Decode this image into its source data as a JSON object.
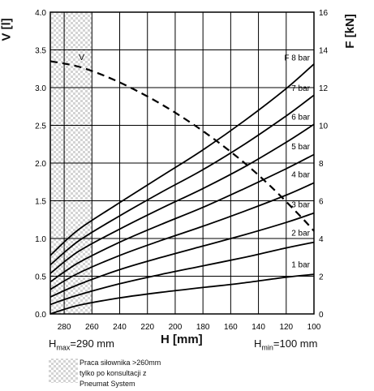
{
  "chart_data": {
    "type": "line",
    "xlabel": "H [mm]",
    "ylabel_left": "V [l]",
    "ylabel_right": "F [kN]",
    "x_reversed": true,
    "xlim": [
      290,
      100
    ],
    "ylim_left": [
      0,
      4.0
    ],
    "ylim_right": [
      0,
      16
    ],
    "x_ticks": [
      "280",
      "260",
      "240",
      "220",
      "200",
      "180",
      "160",
      "140",
      "120",
      "100"
    ],
    "y_ticks_left": [
      "0.0",
      "0.5",
      "1.0",
      "1.5",
      "2.0",
      "2.5",
      "3.0",
      "3.5",
      "4.0"
    ],
    "y_ticks_right": [
      "0",
      "2",
      "4",
      "6",
      "8",
      "10",
      "12",
      "14",
      "16"
    ],
    "grid": true,
    "hatched_region": [
      290,
      260
    ],
    "x_min_label": "H",
    "x_min_sub": "min",
    "x_min_value": "=100 mm",
    "x_max_label": "H",
    "x_max_sub": "max",
    "x_max_value": "=290 mm",
    "force_curves_axis": "right",
    "series": [
      {
        "name": "1 bar",
        "x": [
          290,
          270,
          240,
          210,
          180,
          150,
          120,
          100
        ],
        "y": [
          0.0,
          0.45,
          0.85,
          1.15,
          1.4,
          1.65,
          1.95,
          2.1
        ]
      },
      {
        "name": "2 bar",
        "x": [
          290,
          270,
          240,
          210,
          180,
          150,
          120,
          100
        ],
        "y": [
          0.5,
          1.0,
          1.6,
          2.1,
          2.55,
          3.0,
          3.5,
          3.8
        ]
      },
      {
        "name": "3 bar",
        "x": [
          290,
          270,
          240,
          210,
          180,
          150,
          120,
          100
        ],
        "y": [
          0.9,
          1.55,
          2.35,
          3.0,
          3.6,
          4.2,
          4.85,
          5.35
        ]
      },
      {
        "name": "4 bar",
        "x": [
          290,
          270,
          240,
          210,
          180,
          150,
          120,
          100
        ],
        "y": [
          1.3,
          2.15,
          3.1,
          3.9,
          4.65,
          5.45,
          6.3,
          6.95
        ]
      },
      {
        "name": "5 bar",
        "x": [
          290,
          270,
          240,
          210,
          180,
          150,
          120,
          100
        ],
        "y": [
          1.7,
          2.7,
          3.8,
          4.75,
          5.65,
          6.65,
          7.7,
          8.45
        ]
      },
      {
        "name": "6 bar",
        "x": [
          290,
          270,
          240,
          210,
          180,
          150,
          120,
          100
        ],
        "y": [
          2.15,
          3.3,
          4.5,
          5.6,
          6.65,
          7.8,
          9.1,
          10.05
        ]
      },
      {
        "name": "7 bar",
        "x": [
          290,
          270,
          240,
          210,
          180,
          150,
          120,
          100
        ],
        "y": [
          2.6,
          3.85,
          5.2,
          6.45,
          7.65,
          9.0,
          10.5,
          11.6
        ]
      },
      {
        "name": "F 8 bar",
        "x": [
          290,
          270,
          240,
          210,
          180,
          150,
          120,
          100
        ],
        "y": [
          3.1,
          4.45,
          5.9,
          7.3,
          8.7,
          10.25,
          11.95,
          13.25
        ]
      }
    ],
    "volume_curve": {
      "name": "V",
      "axis": "left",
      "style": "dashed",
      "x": [
        290,
        270,
        250,
        230,
        210,
        190,
        170,
        150,
        130,
        110,
        100
      ],
      "y": [
        3.35,
        3.28,
        3.15,
        2.98,
        2.78,
        2.55,
        2.29,
        2.0,
        1.67,
        1.3,
        1.1
      ]
    }
  },
  "legend": {
    "line1": "Praca siłownika >260mm",
    "line2": "tylko po konsultacji z",
    "line3": "Pneumat System"
  }
}
